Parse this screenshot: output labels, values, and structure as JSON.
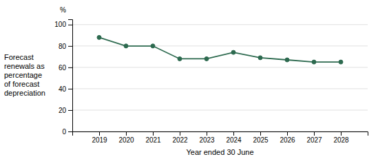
{
  "chart_data": {
    "type": "line",
    "x": [
      2019,
      2020,
      2021,
      2022,
      2023,
      2024,
      2025,
      2026,
      2027,
      2028
    ],
    "values": [
      88,
      80,
      80,
      68,
      68,
      74,
      69,
      67,
      65,
      65
    ],
    "color": "#2d6a4f",
    "marker": "o",
    "x_label": "Year ended 30 June",
    "y_label": "Forecast\nrenewals as\npercentage\nof forecast\ndepreciation",
    "annotations": [
      "%"
    ],
    "xlim": [
      2018,
      2029
    ],
    "xticks": [
      2019,
      2020,
      2021,
      2022,
      2023,
      2024,
      2025,
      2026,
      2027,
      2028
    ],
    "ylim": [
      0,
      105
    ],
    "yticks": [
      0,
      20,
      40,
      60,
      80,
      100
    ],
    "grid": true
  }
}
